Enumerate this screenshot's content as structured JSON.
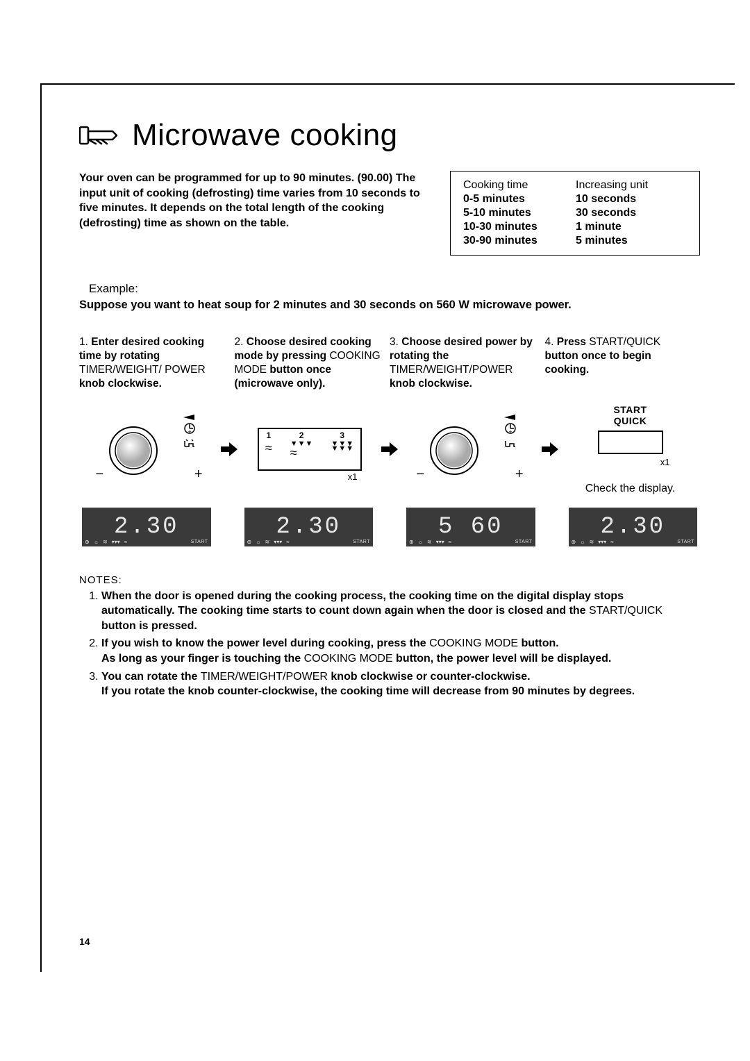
{
  "heading": "Microwave cooking",
  "intro": "Your oven can be programmed for up to 90 minutes. (90.00) The input unit of cooking (defrosting) time varies from 10 seconds to five minutes. It depends on the total length of the cooking (defrosting) time as shown on the table.",
  "time_table": {
    "col1_header": "Cooking time",
    "col2_header": "Increasing unit",
    "rows": [
      {
        "a": "0-5 minutes",
        "b": "10 seconds"
      },
      {
        "a": "5-10 minutes",
        "b": "30 seconds"
      },
      {
        "a": "10-30 minutes",
        "b": "1 minute"
      },
      {
        "a": "30-90 minutes",
        "b": "5 minutes"
      }
    ]
  },
  "example_label": "Example:",
  "example_text": "Suppose you want to heat soup for 2 minutes and 30 seconds on 560 W microwave power.",
  "steps": [
    {
      "num": "1.",
      "bold1": "Enter desired cooking time by rotating",
      "plain1": " TIMER/WEIGHT/ POWER ",
      "bold2": "knob clockwise."
    },
    {
      "num": "2.",
      "bold1": "Choose desired cooking mode by pressing",
      "plain1": " COOKING MODE ",
      "bold2": "button once (microwave only)."
    },
    {
      "num": "3.",
      "bold1": "Choose desired power by rotating the",
      "plain1": " TIMER/WEIGHT/POWER ",
      "bold2": "knob clockwise."
    },
    {
      "num": "4.",
      "bold1": "Press",
      "plain1": " START/QUICK ",
      "bold2": "button once to begin cooking."
    }
  ],
  "start_label1": "START",
  "start_label2": "QUICK",
  "x1_label": "x1",
  "check_display": "Check the display.",
  "mode_nums": [
    "1",
    "2",
    "3"
  ],
  "displays": [
    "2.30",
    "2.30",
    "5 60",
    "2.30"
  ],
  "disp_start": "START",
  "notes_header": "NOTES:",
  "notes": [
    {
      "parts": [
        {
          "b": true,
          "t": "When the door is opened during the cooking process, the cooking time on the digital display stops automatically. The cooking time starts to count down again when the door is closed and the "
        },
        {
          "b": false,
          "t": "START/QUICK"
        },
        {
          "b": true,
          "t": " button is pressed."
        }
      ]
    },
    {
      "parts": [
        {
          "b": true,
          "t": "If you wish to know the power level during cooking, press the "
        },
        {
          "b": false,
          "t": "COOKING MODE"
        },
        {
          "b": true,
          "t": " button.\nAs long as your finger is touching the "
        },
        {
          "b": false,
          "t": "COOKING MODE"
        },
        {
          "b": true,
          "t": " button, the power level will be displayed."
        }
      ]
    },
    {
      "parts": [
        {
          "b": true,
          "t": "You can rotate the "
        },
        {
          "b": false,
          "t": "TIMER/WEIGHT/POWER"
        },
        {
          "b": true,
          "t": " knob clockwise or counter-clockwise.\nIf you rotate the knob counter-clockwise, the cooking time will decrease from 90 minutes by degrees."
        }
      ]
    }
  ],
  "page_number": "14",
  "colors": {
    "display_bg": "#3a3a3a",
    "display_fg": "#e8e8e8"
  }
}
